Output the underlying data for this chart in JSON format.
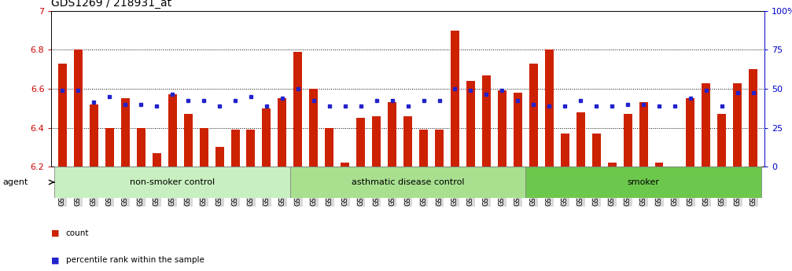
{
  "title": "GDS1269 / 218931_at",
  "samples": [
    "GSM38345",
    "GSM38346",
    "GSM38348",
    "GSM38350",
    "GSM38351",
    "GSM38353",
    "GSM38355",
    "GSM38356",
    "GSM38358",
    "GSM38362",
    "GSM38368",
    "GSM38371",
    "GSM38373",
    "GSM38377",
    "GSM38385",
    "GSM38361",
    "GSM38363",
    "GSM38364",
    "GSM38365",
    "GSM38370",
    "GSM38372",
    "GSM38375",
    "GSM38378",
    "GSM38379",
    "GSM38381",
    "GSM38383",
    "GSM38386",
    "GSM38387",
    "GSM38388",
    "GSM38389",
    "GSM38347",
    "GSM38349",
    "GSM38352",
    "GSM38354",
    "GSM38357",
    "GSM38359",
    "GSM38360",
    "GSM38366",
    "GSM38367",
    "GSM38369",
    "GSM38374",
    "GSM38376",
    "GSM38380",
    "GSM38382",
    "GSM38384"
  ],
  "bar_values": [
    6.73,
    6.8,
    6.52,
    6.4,
    6.55,
    6.4,
    6.27,
    6.57,
    6.47,
    6.4,
    6.3,
    6.39,
    6.39,
    6.5,
    6.55,
    6.79,
    6.6,
    6.4,
    6.22,
    6.45,
    6.46,
    6.53,
    6.46,
    6.39,
    6.39,
    6.9,
    6.64,
    6.67,
    6.59,
    6.58,
    6.73,
    6.8,
    6.37,
    6.48,
    6.37,
    6.22,
    6.47,
    6.53,
    6.22,
    6.2,
    6.55,
    6.63,
    6.47,
    6.63,
    6.7
  ],
  "percentile_values": [
    6.59,
    6.59,
    6.53,
    6.56,
    6.52,
    6.52,
    6.51,
    6.57,
    6.54,
    6.54,
    6.51,
    6.54,
    6.56,
    6.51,
    6.55,
    6.6,
    6.54,
    6.51,
    6.51,
    6.51,
    6.54,
    6.54,
    6.51,
    6.54,
    6.54,
    6.6,
    6.59,
    6.57,
    6.59,
    6.54,
    6.52,
    6.51,
    6.51,
    6.54,
    6.51,
    6.51,
    6.52,
    6.52,
    6.51,
    6.51,
    6.55,
    6.59,
    6.51,
    6.58,
    6.58
  ],
  "groups": [
    {
      "label": "non-smoker control",
      "start": 0,
      "end": 15,
      "color": "#c8efc0"
    },
    {
      "label": "asthmatic disease control",
      "start": 15,
      "end": 30,
      "color": "#a8e090"
    },
    {
      "label": "smoker",
      "start": 30,
      "end": 45,
      "color": "#6cc84c"
    }
  ],
  "ylim": [
    6.2,
    7.0
  ],
  "y2lim": [
    0,
    100
  ],
  "yticks_left": [
    6.2,
    6.4,
    6.6,
    6.8,
    7.0
  ],
  "ytick_labels_left": [
    "6.2",
    "6.4",
    "6.6",
    "6.8",
    "7"
  ],
  "yticks_right": [
    0,
    25,
    50,
    75,
    100
  ],
  "ytick_labels_right": [
    "0",
    "25",
    "50",
    "75",
    "100%"
  ],
  "hlines": [
    6.4,
    6.6,
    6.8
  ],
  "bar_color": "#cc2200",
  "dot_color": "#2222cc",
  "title_fontsize": 10,
  "tick_fontsize": 6,
  "axis_label_fontsize": 8,
  "group_fontsize": 8,
  "legend_fontsize": 7.5,
  "agent_label": "agent",
  "legend_count_label": "count",
  "legend_pct_label": "percentile rank within the sample",
  "xtick_bg_color": "#d8d8d8",
  "group_border_color": "#888888"
}
